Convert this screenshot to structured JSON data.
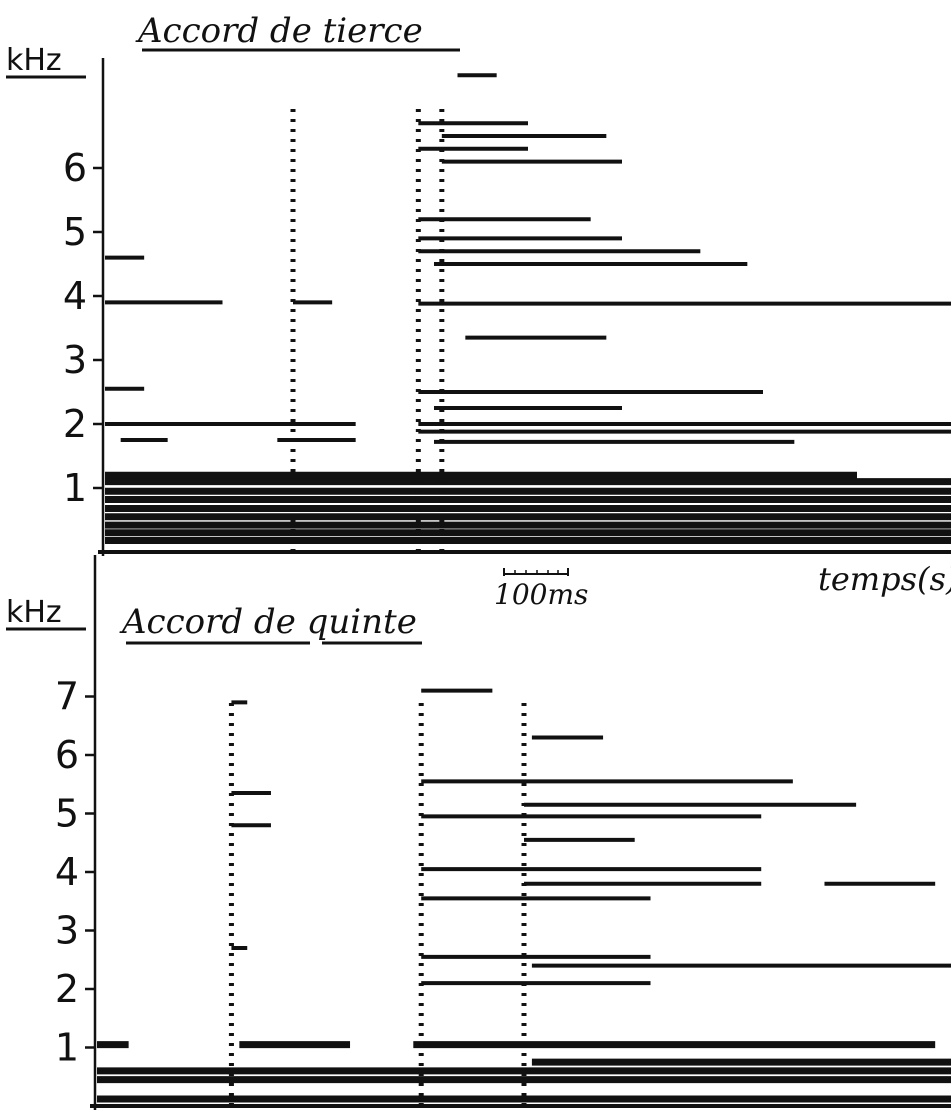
{
  "chart_data": [
    {
      "type": "spectrogram",
      "title": "Accord de tierce",
      "ylabel": "kHz",
      "xlabel": "temps(s)",
      "scale_bar": "100ms",
      "ylim": [
        0,
        7.5
      ],
      "yticks": [
        1,
        2,
        3,
        4,
        5,
        6
      ],
      "x_unit": "ms",
      "duration_ms": 540,
      "harmonics": [
        {
          "freq": 0.18,
          "t0": 0,
          "t1": 540
        },
        {
          "freq": 0.3,
          "t0": 0,
          "t1": 540
        },
        {
          "freq": 0.42,
          "t0": 0,
          "t1": 540
        },
        {
          "freq": 0.55,
          "t0": 0,
          "t1": 540
        },
        {
          "freq": 0.68,
          "t0": 0,
          "t1": 540
        },
        {
          "freq": 0.82,
          "t0": 0,
          "t1": 540
        },
        {
          "freq": 0.95,
          "t0": 0,
          "t1": 540
        },
        {
          "freq": 1.1,
          "t0": 0,
          "t1": 540
        },
        {
          "freq": 1.2,
          "t0": 0,
          "t1": 480
        },
        {
          "freq": 1.75,
          "t0": 10,
          "t1": 40
        },
        {
          "freq": 1.75,
          "t0": 110,
          "t1": 160
        },
        {
          "freq": 2.0,
          "t0": 0,
          "t1": 160
        },
        {
          "freq": 2.0,
          "t0": 200,
          "t1": 540
        },
        {
          "freq": 1.88,
          "t0": 200,
          "t1": 540
        },
        {
          "freq": 1.72,
          "t0": 210,
          "t1": 440
        },
        {
          "freq": 2.25,
          "t0": 210,
          "t1": 330
        },
        {
          "freq": 2.5,
          "t0": 200,
          "t1": 420
        },
        {
          "freq": 2.55,
          "t0": 0,
          "t1": 25
        },
        {
          "freq": 3.35,
          "t0": 230,
          "t1": 320
        },
        {
          "freq": 3.9,
          "t0": 0,
          "t1": 75
        },
        {
          "freq": 3.9,
          "t0": 120,
          "t1": 145
        },
        {
          "freq": 3.88,
          "t0": 200,
          "t1": 540
        },
        {
          "freq": 4.6,
          "t0": 0,
          "t1": 25
        },
        {
          "freq": 4.5,
          "t0": 210,
          "t1": 410
        },
        {
          "freq": 4.7,
          "t0": 200,
          "t1": 380
        },
        {
          "freq": 4.9,
          "t0": 200,
          "t1": 330
        },
        {
          "freq": 5.2,
          "t0": 200,
          "t1": 310
        },
        {
          "freq": 6.1,
          "t0": 215,
          "t1": 330
        },
        {
          "freq": 6.3,
          "t0": 200,
          "t1": 270
        },
        {
          "freq": 6.5,
          "t0": 215,
          "t1": 320
        },
        {
          "freq": 6.7,
          "t0": 200,
          "t1": 270
        },
        {
          "freq": 7.45,
          "t0": 225,
          "t1": 250
        }
      ],
      "onsets_ms": [
        120,
        200,
        215
      ]
    },
    {
      "type": "spectrogram",
      "title": "Accord de quinte",
      "ylabel": "kHz",
      "ylim": [
        0,
        7.5
      ],
      "yticks": [
        1,
        2,
        3,
        4,
        5,
        6,
        7
      ],
      "x_unit": "ms",
      "duration_ms": 540,
      "harmonics": [
        {
          "freq": 0.12,
          "t0": 0,
          "t1": 540
        },
        {
          "freq": 0.45,
          "t0": 0,
          "t1": 540
        },
        {
          "freq": 0.6,
          "t0": 0,
          "t1": 540
        },
        {
          "freq": 0.75,
          "t0": 275,
          "t1": 540
        },
        {
          "freq": 1.05,
          "t0": 0,
          "t1": 20
        },
        {
          "freq": 1.05,
          "t0": 90,
          "t1": 160
        },
        {
          "freq": 1.05,
          "t0": 200,
          "t1": 530
        },
        {
          "freq": 2.1,
          "t0": 205,
          "t1": 350
        },
        {
          "freq": 2.4,
          "t0": 275,
          "t1": 540
        },
        {
          "freq": 2.55,
          "t0": 205,
          "t1": 350
        },
        {
          "freq": 2.7,
          "t0": 85,
          "t1": 95
        },
        {
          "freq": 3.55,
          "t0": 205,
          "t1": 350
        },
        {
          "freq": 3.8,
          "t0": 270,
          "t1": 420
        },
        {
          "freq": 3.8,
          "t0": 460,
          "t1": 530
        },
        {
          "freq": 4.05,
          "t0": 205,
          "t1": 420
        },
        {
          "freq": 4.55,
          "t0": 270,
          "t1": 340
        },
        {
          "freq": 4.8,
          "t0": 85,
          "t1": 110
        },
        {
          "freq": 4.95,
          "t0": 205,
          "t1": 420
        },
        {
          "freq": 5.15,
          "t0": 270,
          "t1": 480
        },
        {
          "freq": 5.35,
          "t0": 85,
          "t1": 110
        },
        {
          "freq": 5.55,
          "t0": 205,
          "t1": 440
        },
        {
          "freq": 6.3,
          "t0": 275,
          "t1": 320
        },
        {
          "freq": 6.9,
          "t0": 85,
          "t1": 95
        },
        {
          "freq": 7.1,
          "t0": 205,
          "t1": 250
        }
      ],
      "onsets_ms": [
        85,
        205,
        270
      ]
    }
  ],
  "colors": {
    "ink": "#111111",
    "paper": "#ffffff"
  }
}
